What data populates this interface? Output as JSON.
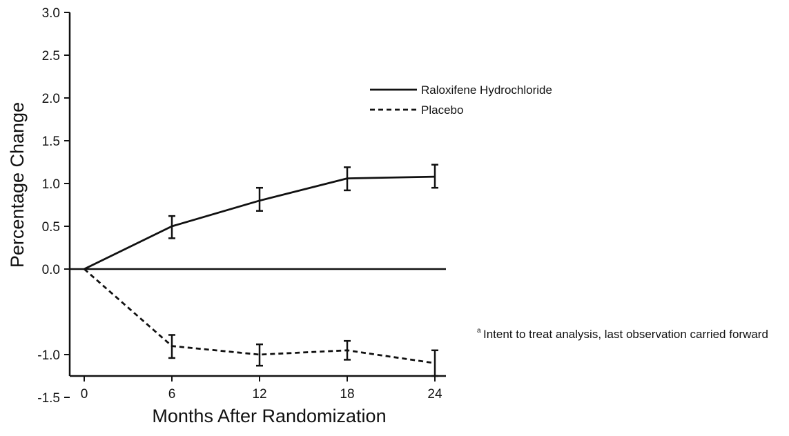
{
  "chart_data": {
    "type": "line",
    "title": "",
    "xlabel": "Months After Randomization",
    "ylabel": "Percentage Change",
    "x": [
      0,
      6,
      12,
      18,
      24
    ],
    "x_ticks": [
      0,
      6,
      12,
      18,
      24
    ],
    "x_tick_labels": [
      "0",
      "6",
      "12",
      "18",
      "24"
    ],
    "xlim": [
      -0.5,
      25
    ],
    "y_ticks": [
      3.0,
      2.5,
      2.0,
      1.5,
      1.0,
      0.5,
      0.0,
      -1.0,
      -1.5
    ],
    "y_tick_labels": [
      "3.0",
      "2.5",
      "2.0",
      "1.5",
      "1.0",
      "0.5",
      "0.0",
      "-1.0",
      "-1.5"
    ],
    "ylim": [
      -1.7,
      3.0
    ],
    "reference_line_y": 0,
    "grid": false,
    "legend_position": "top-right",
    "series": [
      {
        "name": "Raloxifene Hydrochloride",
        "line_style": "solid",
        "values": [
          0,
          0.5,
          0.8,
          1.06,
          1.08
        ],
        "error_low": [
          null,
          0.36,
          0.68,
          0.92,
          0.95
        ],
        "error_high": [
          null,
          0.62,
          0.95,
          1.19,
          1.22
        ]
      },
      {
        "name": "Placebo",
        "line_style": "dashed",
        "values": [
          0,
          -0.9,
          -1.0,
          -0.95,
          -1.1
        ],
        "error_low": [
          null,
          -1.04,
          -1.13,
          -1.06,
          -1.25
        ],
        "error_high": [
          null,
          -0.77,
          -0.88,
          -0.84,
          -0.95
        ]
      }
    ],
    "annotations": [
      {
        "marker": "a",
        "text": "Intent to treat analysis, last observation carried forward"
      }
    ]
  },
  "colors": {
    "ink": "#111111",
    "background": "#ffffff"
  }
}
